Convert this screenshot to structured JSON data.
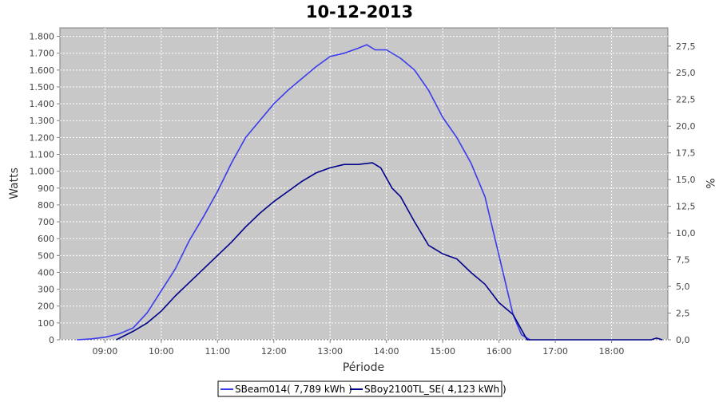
{
  "chart_data": {
    "type": "line",
    "title": "10-12-2013",
    "xlabel": "Période",
    "ylabel": "Watts",
    "y2label": "%",
    "xlim": [
      8.2,
      19.0
    ],
    "ylim": [
      0,
      1850
    ],
    "y2lim": [
      0,
      29.2
    ],
    "grid": true,
    "legend_position": "bottom",
    "x_ticks": [
      9,
      10,
      11,
      12,
      13,
      14,
      15,
      16,
      17,
      18
    ],
    "x_tick_labels": [
      "09:00",
      "10:00",
      "11:00",
      "12:00",
      "13:00",
      "14:00",
      "15:00",
      "16:00",
      "17:00",
      "18:00"
    ],
    "y_ticks": [
      0,
      100,
      200,
      300,
      400,
      500,
      600,
      700,
      800,
      900,
      1000,
      1100,
      1200,
      1300,
      1400,
      1500,
      1600,
      1700,
      1800
    ],
    "y_tick_labels": [
      "0",
      "100",
      "200",
      "300",
      "400",
      "500",
      "600",
      "700",
      "800",
      "900",
      "1.000",
      "1.100",
      "1.200",
      "1.300",
      "1.400",
      "1.500",
      "1.600",
      "1.700",
      "1.800"
    ],
    "y2_ticks": [
      0,
      2.5,
      5,
      7.5,
      10,
      12.5,
      15,
      17.5,
      20,
      22.5,
      25,
      27.5
    ],
    "y2_tick_labels": [
      "0,0",
      "2,5",
      "5,0",
      "7,5",
      "10,0",
      "12,5",
      "15,0",
      "17,5",
      "20,0",
      "22,5",
      "25,0",
      "27,5"
    ],
    "colors": {
      "plot_bg": "#c8c8c8",
      "grid": "#ffffff",
      "frame": "#808080"
    },
    "series": [
      {
        "name": "SBeam014( 7,789 kWh )",
        "color": "#3a3aee",
        "x": [
          8.5,
          8.75,
          9.0,
          9.25,
          9.5,
          9.75,
          10.0,
          10.25,
          10.5,
          10.75,
          11.0,
          11.25,
          11.5,
          11.75,
          12.0,
          12.25,
          12.5,
          12.75,
          13.0,
          13.25,
          13.5,
          13.65,
          13.8,
          14.0,
          14.25,
          14.5,
          14.75,
          15.0,
          15.25,
          15.5,
          15.75,
          16.0,
          16.25,
          16.4,
          16.55
        ],
        "y": [
          0,
          5,
          15,
          35,
          70,
          160,
          290,
          420,
          590,
          730,
          880,
          1050,
          1200,
          1300,
          1400,
          1480,
          1550,
          1620,
          1680,
          1700,
          1730,
          1750,
          1720,
          1720,
          1670,
          1600,
          1480,
          1320,
          1200,
          1050,
          850,
          500,
          150,
          30,
          0
        ]
      },
      {
        "name": "SBoy2100TL_SE( 4,123 kWh )",
        "color": "#00008b",
        "x": [
          9.2,
          9.5,
          9.75,
          10.0,
          10.25,
          10.5,
          10.75,
          11.0,
          11.25,
          11.5,
          11.75,
          12.0,
          12.25,
          12.5,
          12.75,
          13.0,
          13.25,
          13.5,
          13.75,
          13.9,
          14.1,
          14.25,
          14.5,
          14.75,
          15.0,
          15.25,
          15.5,
          15.75,
          16.0,
          16.25,
          16.5,
          18.7,
          18.8,
          18.9
        ],
        "y": [
          0,
          50,
          100,
          170,
          260,
          340,
          420,
          500,
          580,
          670,
          750,
          820,
          880,
          940,
          990,
          1020,
          1040,
          1040,
          1050,
          1020,
          900,
          850,
          700,
          560,
          510,
          480,
          400,
          330,
          220,
          150,
          0,
          0,
          10,
          0
        ]
      }
    ]
  }
}
